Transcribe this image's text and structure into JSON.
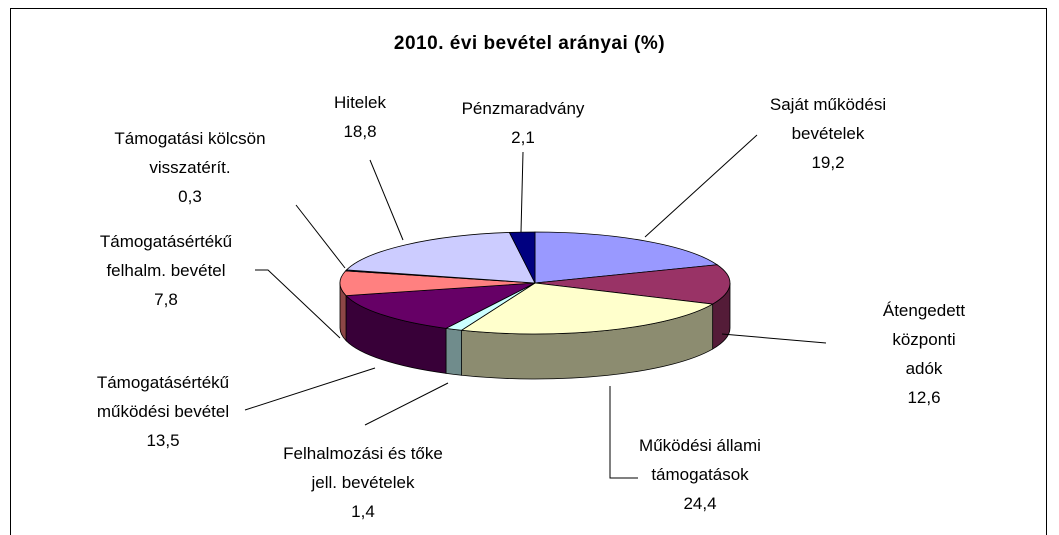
{
  "chart_data": {
    "type": "pie3d",
    "title": "2010. évi bevétel arányai (%)",
    "categories": [
      "Saját működési\nbevételek",
      "Átengedett központi\nadók",
      "Működési állami\ntámogatások",
      "Felhalmozási és tőke\njell. bevételek",
      "Támogatásértékű\nműködési bevétel",
      "Támogatásértékű\nfelhalm. bevétel",
      "Támogatási kölcsön\nvisszatérít.",
      "Hitelek",
      "Pénzmaradvány"
    ],
    "values": [
      19.2,
      12.6,
      24.4,
      1.4,
      13.5,
      7.8,
      0.3,
      18.8,
      2.1
    ],
    "value_labels": [
      "19,2",
      "12,6",
      "24,4",
      "1,4",
      "13,5",
      "7,8",
      "0,3",
      "18,8",
      "2,1"
    ],
    "colors": [
      "#9999ff",
      "#993366",
      "#ffffcc",
      "#ccffff",
      "#660066",
      "#ff8080",
      "#0066cc",
      "#ccccff",
      "#000080"
    ]
  }
}
